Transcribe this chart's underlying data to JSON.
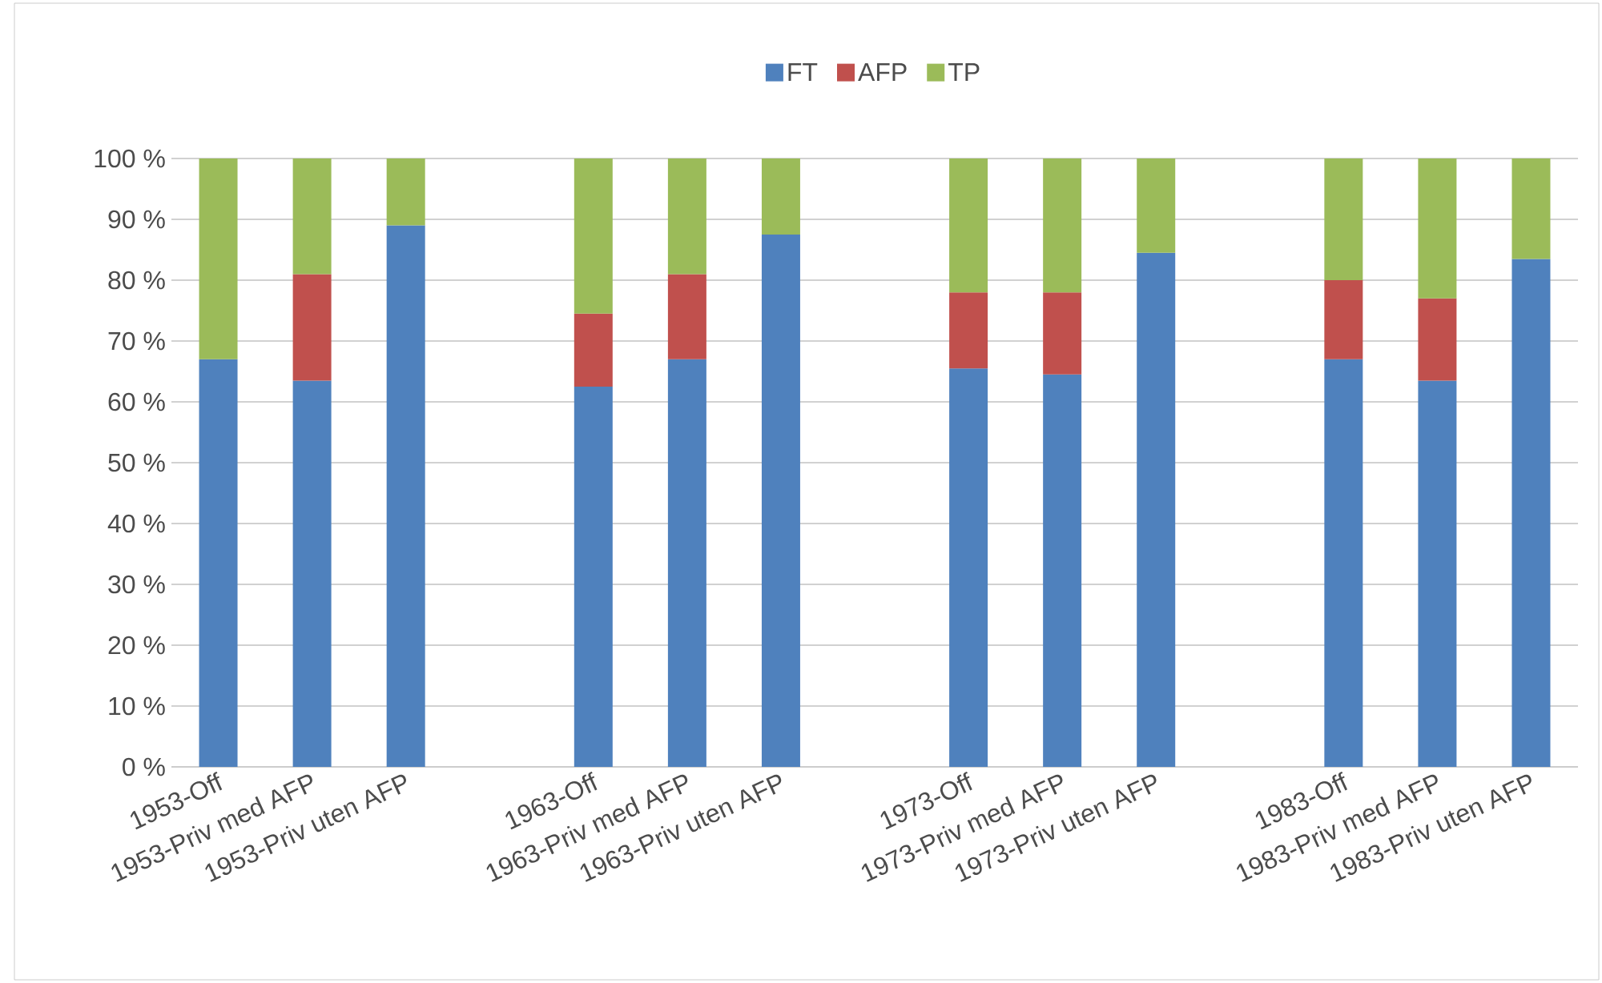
{
  "chart_data": {
    "type": "bar",
    "stacked": true,
    "categories": [
      "1953-Off",
      "1953-Priv med AFP",
      "1953-Priv uten AFP",
      null,
      "1963-Off",
      "1963-Priv med AFP",
      "1963-Priv uten AFP",
      null,
      "1973-Off",
      "1973-Priv med AFP",
      "1973-Priv uten AFP",
      null,
      "1983-Off",
      "1983-Priv med AFP",
      "1983-Priv uten AFP"
    ],
    "series": [
      {
        "name": "FT",
        "color": "#4f81bd",
        "values": [
          67,
          63.5,
          89,
          null,
          62.5,
          67,
          87.5,
          null,
          65.5,
          64.5,
          84.5,
          null,
          67,
          63.5,
          83.5
        ]
      },
      {
        "name": "AFP",
        "color": "#c0504d",
        "values": [
          null,
          17.5,
          null,
          null,
          12,
          14,
          null,
          null,
          12.5,
          13.5,
          null,
          null,
          13,
          13.5,
          null
        ]
      },
      {
        "name": "TP",
        "color": "#9bbb59",
        "values": [
          33,
          19,
          11,
          null,
          25.5,
          19,
          12.5,
          null,
          22,
          22,
          15.5,
          null,
          20,
          23,
          16.5
        ]
      }
    ],
    "ylim": [
      0,
      100
    ],
    "yticks": [
      {
        "value": 0,
        "label": "0 %"
      },
      {
        "value": 10,
        "label": "10 %"
      },
      {
        "value": 20,
        "label": "20 %"
      },
      {
        "value": 30,
        "label": "30 %"
      },
      {
        "value": 40,
        "label": "40 %"
      },
      {
        "value": 50,
        "label": "50 %"
      },
      {
        "value": 60,
        "label": "60 %"
      },
      {
        "value": 70,
        "label": "70 %"
      },
      {
        "value": 80,
        "label": "80 %"
      },
      {
        "value": 90,
        "label": "90 %"
      },
      {
        "value": 100,
        "label": "100 %"
      }
    ],
    "grid": "y",
    "legend": "top"
  }
}
